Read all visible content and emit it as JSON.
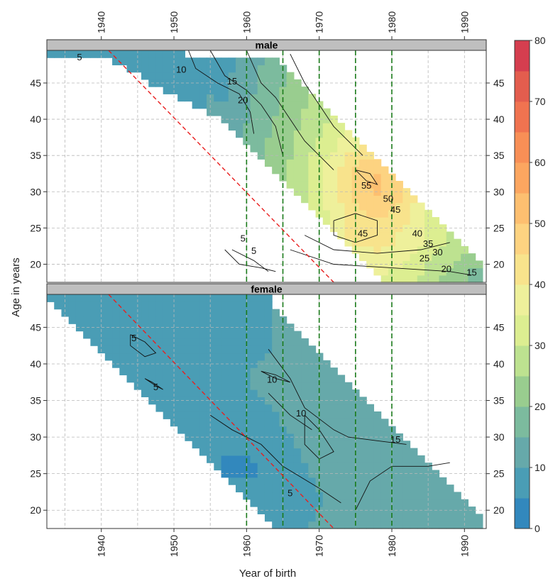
{
  "chart_data": {
    "type": "heatmap",
    "xlabel": "Year of birth",
    "ylabel": "Age in years",
    "xlim": [
      1932.5,
      1993
    ],
    "ylim": [
      17.5,
      49.5
    ],
    "x_ticks": [
      1940,
      1950,
      1960,
      1970,
      1980,
      1990
    ],
    "y_ticks": [
      20,
      25,
      30,
      35,
      40,
      45
    ],
    "panels": [
      {
        "name": "male",
        "reference_lines": {
          "vertical_years": [
            1960,
            1965,
            1970,
            1975,
            1980
          ],
          "diagonal": [
            [
              1941,
              49.5
            ],
            [
              1972,
              17.5
            ]
          ]
        },
        "contour_labels": [
          {
            "text": "5",
            "x": 1937,
            "y": 48.5
          },
          {
            "text": "10",
            "x": 1951,
            "y": 46.8
          },
          {
            "text": "15",
            "x": 1958,
            "y": 45.2
          },
          {
            "text": "20",
            "x": 1959.5,
            "y": 42.6
          },
          {
            "text": "55",
            "x": 1976.5,
            "y": 30.8
          },
          {
            "text": "50",
            "x": 1979.5,
            "y": 29
          },
          {
            "text": "45",
            "x": 1980.5,
            "y": 27.5
          },
          {
            "text": "45",
            "x": 1976,
            "y": 24.2
          },
          {
            "text": "40",
            "x": 1983.5,
            "y": 24.2
          },
          {
            "text": "35",
            "x": 1985,
            "y": 22.8
          },
          {
            "text": "30",
            "x": 1986.3,
            "y": 21.6
          },
          {
            "text": "25",
            "x": 1984.5,
            "y": 20.8
          },
          {
            "text": "20",
            "x": 1987.5,
            "y": 19.3
          },
          {
            "text": "15",
            "x": 1991,
            "y": 18.8
          },
          {
            "text": "5",
            "x": 1959.5,
            "y": 23.5
          },
          {
            "text": "5",
            "x": 1961,
            "y": 21.8
          }
        ]
      },
      {
        "name": "female",
        "reference_lines": {
          "vertical_years": [
            1960,
            1965,
            1970,
            1975,
            1980
          ],
          "diagonal": [
            [
              1941,
              49.5
            ],
            [
              1972,
              17.5
            ]
          ]
        },
        "contour_labels": [
          {
            "text": "5",
            "x": 1944.5,
            "y": 43.5
          },
          {
            "text": "5",
            "x": 1947.5,
            "y": 36.8
          },
          {
            "text": "10",
            "x": 1963.5,
            "y": 37.8
          },
          {
            "text": "10",
            "x": 1967.5,
            "y": 33.2
          },
          {
            "text": "15",
            "x": 1980.5,
            "y": 29.6
          },
          {
            "text": "5",
            "x": 1966,
            "y": 22.3
          }
        ]
      }
    ],
    "colorbar": {
      "min": 0,
      "max": 80,
      "ticks": [
        0,
        10,
        20,
        30,
        40,
        50,
        60,
        70,
        80
      ],
      "bins": [
        {
          "from": 0,
          "to": 5,
          "color": "#3288bd"
        },
        {
          "from": 5,
          "to": 10,
          "color": "#4a9db5"
        },
        {
          "from": 10,
          "to": 15,
          "color": "#66a9aa"
        },
        {
          "from": 15,
          "to": 20,
          "color": "#7cbb9e"
        },
        {
          "from": 20,
          "to": 25,
          "color": "#99cd8f"
        },
        {
          "from": 25,
          "to": 30,
          "color": "#bde290"
        },
        {
          "from": 30,
          "to": 35,
          "color": "#dcee91"
        },
        {
          "from": 35,
          "to": 40,
          "color": "#eef09b"
        },
        {
          "from": 40,
          "to": 45,
          "color": "#f8e38c"
        },
        {
          "from": 45,
          "to": 50,
          "color": "#fdd381"
        },
        {
          "from": 50,
          "to": 55,
          "color": "#fdbf70"
        },
        {
          "from": 55,
          "to": 60,
          "color": "#fca660"
        },
        {
          "from": 60,
          "to": 65,
          "color": "#f88f56"
        },
        {
          "from": 65,
          "to": 70,
          "color": "#f07350"
        },
        {
          "from": 70,
          "to": 75,
          "color": "#e35d4e"
        },
        {
          "from": 75,
          "to": 80,
          "color": "#d53e4f"
        }
      ]
    },
    "colors": {
      "strip": "#bfbfbf",
      "vline": "#1a7a1a",
      "diag": "#e82020",
      "grid": "#b8b8b8"
    }
  }
}
